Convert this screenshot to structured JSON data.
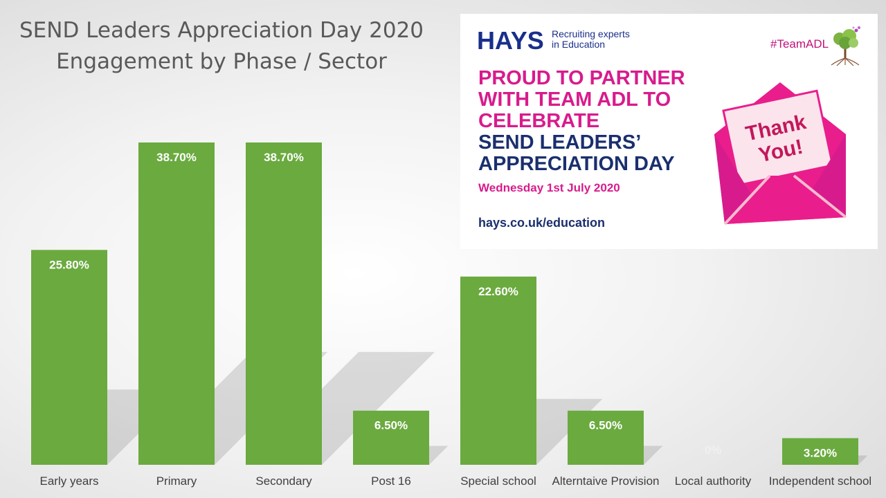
{
  "chart_data": {
    "type": "bar",
    "title_lines": [
      "SEND Leaders Appreciation Day 2020",
      "Engagement by Phase / Sector"
    ],
    "categories": [
      "Early years",
      "Primary",
      "Secondary",
      "Post 16",
      "Special school",
      "Alterntaive Provision",
      "Local authority",
      "Independent school"
    ],
    "values": [
      25.8,
      38.7,
      38.7,
      6.5,
      22.6,
      6.5,
      0,
      3.2
    ],
    "data_labels": [
      "25.80%",
      "38.70%",
      "38.70%",
      "6.50%",
      "22.60%",
      "6.50%",
      "0%",
      "3.20%"
    ],
    "ylim": [
      0,
      38.7
    ],
    "bar_color": "#6aaa3f",
    "grid": false,
    "legend": "none"
  },
  "ad": {
    "brand": "HAYS",
    "tagline_line1": "Recruiting experts",
    "tagline_line2": "in Education",
    "hashtag": "#TeamADL",
    "headline_pink": [
      "PROUD TO PARTNER",
      "WITH TEAM ADL TO",
      "CELEBRATE"
    ],
    "headline_navy": [
      "SEND LEADERS’",
      "APPRECIATION DAY"
    ],
    "date": "Wednesday 1st July 2020",
    "url": "hays.co.uk/education",
    "card_line1": "Thank",
    "card_line2": "You!",
    "colors": {
      "pink": "#d81b8c",
      "navy": "#1a2f6e",
      "hays_blue": "#1a2f8a"
    }
  }
}
